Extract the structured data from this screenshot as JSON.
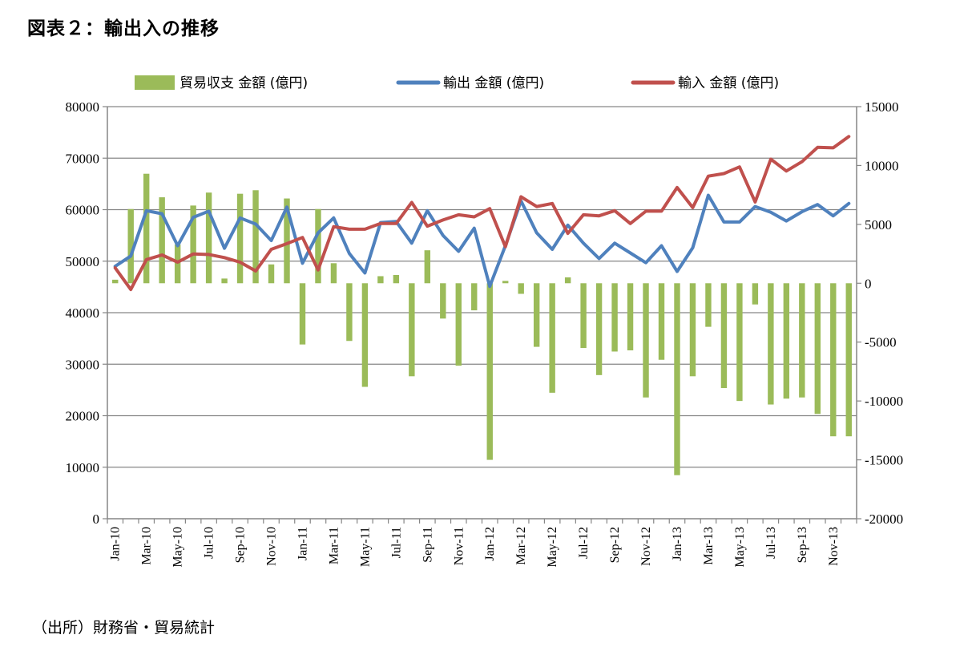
{
  "title": "図表２：輸出入の推移",
  "source": "（出所）財務省・貿易統計",
  "chart_data": {
    "type": "bar+line",
    "categories": [
      "Jan-10",
      "Feb-10",
      "Mar-10",
      "Apr-10",
      "May-10",
      "Jun-10",
      "Jul-10",
      "Aug-10",
      "Sep-10",
      "Oct-10",
      "Nov-10",
      "Dec-10",
      "Jan-11",
      "Feb-11",
      "Mar-11",
      "Apr-11",
      "May-11",
      "Jun-11",
      "Jul-11",
      "Aug-11",
      "Sep-11",
      "Oct-11",
      "Nov-11",
      "Dec-11",
      "Jan-12",
      "Feb-12",
      "Mar-12",
      "Apr-12",
      "May-12",
      "Jun-12",
      "Jul-12",
      "Aug-12",
      "Sep-12",
      "Oct-12",
      "Nov-12",
      "Dec-12",
      "Jan-13",
      "Feb-13",
      "Mar-13",
      "Apr-13",
      "May-13",
      "Jun-13",
      "Jul-13",
      "Aug-13",
      "Sep-13",
      "Oct-13",
      "Nov-13",
      "Dec-13"
    ],
    "tick_labels": [
      "Jan-10",
      "Mar-10",
      "May-10",
      "Jul-10",
      "Sep-10",
      "Nov-10",
      "Jan-11",
      "Mar-11",
      "May-11",
      "Jul-11",
      "Sep-11",
      "Nov-11",
      "Jan-12",
      "Mar-12",
      "May-12",
      "Jul-12",
      "Sep-12",
      "Nov-12",
      "Jan-13",
      "Mar-13",
      "May-13",
      "Jul-13",
      "Sep-13",
      "Nov-13"
    ],
    "left_axis": {
      "min": 0,
      "max": 80000,
      "step": 10000,
      "ticks": [
        "0",
        "10000",
        "20000",
        "30000",
        "40000",
        "50000",
        "60000",
        "70000",
        "80000"
      ]
    },
    "right_axis": {
      "min": -20000,
      "max": 15000,
      "step": 5000,
      "ticks": [
        "-20000",
        "-15000",
        "-10000",
        "-5000",
        "0",
        "5000",
        "10000",
        "15000"
      ]
    },
    "grid": true,
    "legend_position": "top",
    "series": [
      {
        "name": "貿易収支 金額 (億円)",
        "type": "bar",
        "axis": "right",
        "color": "#9bbb59",
        "values": [
          300,
          6300,
          9300,
          7300,
          3300,
          6600,
          7700,
          400,
          7600,
          7900,
          1600,
          7200,
          -5200,
          6300,
          1700,
          -4900,
          -8800,
          600,
          700,
          -7900,
          2800,
          -3000,
          -7000,
          -2300,
          -15000,
          200,
          -900,
          -5400,
          -9300,
          500,
          -5500,
          -7800,
          -5800,
          -5700,
          -9700,
          -6500,
          -16300,
          -7900,
          -3700,
          -8900,
          -10000,
          -1800,
          -10300,
          -9800,
          -9700,
          -11100,
          -13000,
          -13000
        ]
      },
      {
        "name": "輸出 金額 (億円)",
        "type": "line",
        "axis": "left",
        "color": "#4f81bd",
        "values": [
          49000,
          51000,
          59800,
          59200,
          53000,
          58500,
          59700,
          52500,
          58400,
          57200,
          54000,
          60500,
          49600,
          55500,
          58400,
          51500,
          47700,
          57500,
          57700,
          53500,
          59800,
          55000,
          51900,
          56400,
          45100,
          53000,
          61700,
          55500,
          52300,
          57000,
          53500,
          50500,
          53500,
          51600,
          49700,
          53000,
          48000,
          52600,
          62800,
          57600,
          57600,
          60600,
          59500,
          57800,
          59600,
          61000,
          58800,
          61200
        ]
      },
      {
        "name": "輸入 金額 (億円)",
        "type": "line",
        "axis": "left",
        "color": "#c0504d",
        "values": [
          48700,
          44500,
          50300,
          51200,
          49800,
          51400,
          51300,
          50700,
          49800,
          48100,
          52300,
          53400,
          54600,
          48300,
          56700,
          56200,
          56200,
          57300,
          57300,
          61400,
          56800,
          58000,
          59000,
          58600,
          60200,
          52800,
          62500,
          60600,
          61200,
          55400,
          59000,
          58800,
          59800,
          57300,
          59700,
          59700,
          64300,
          60400,
          66500,
          67000,
          68300,
          61500,
          69800,
          67500,
          69300,
          72100,
          72000,
          74200
        ]
      }
    ]
  }
}
